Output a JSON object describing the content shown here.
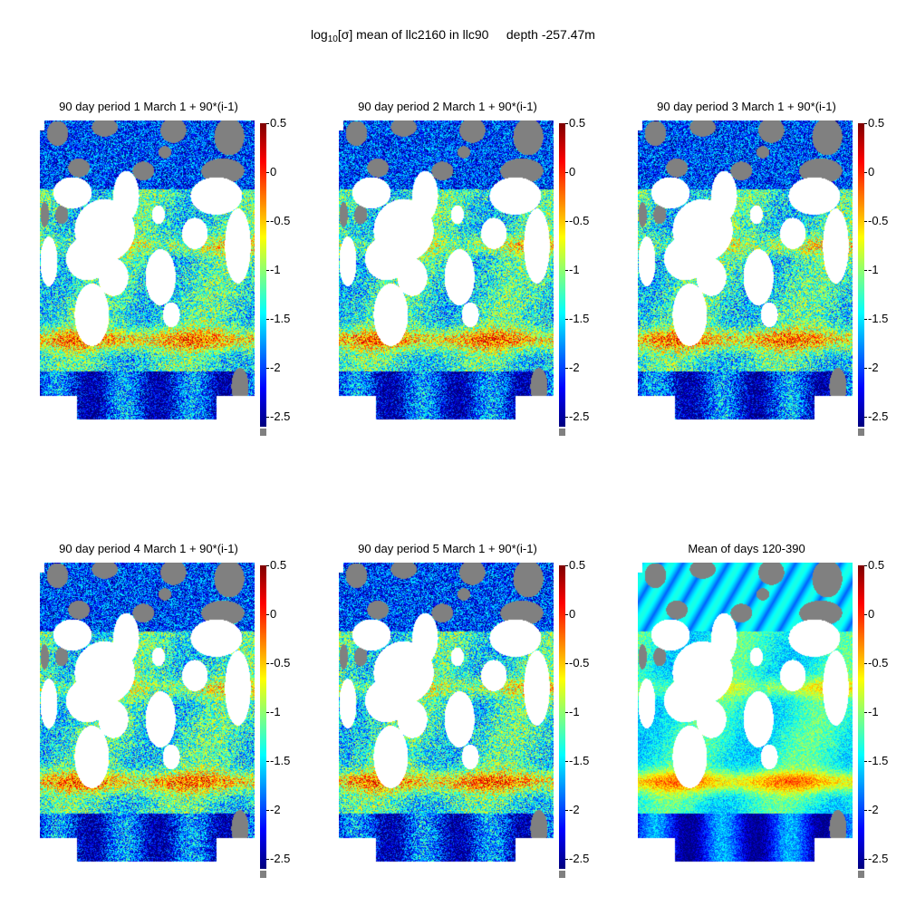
{
  "figure": {
    "title_prefix": "log",
    "title_sub": "10",
    "title_sigma": "[σ]",
    "title_rest": " mean of llc2160 in llc90     depth -257.47m"
  },
  "chart_data": [
    {
      "type": "heatmap",
      "title": "90 day period 1 March 1 + 90*(i-1)",
      "colorbar_ticks": [
        "0.5",
        "0",
        "-0.5",
        "-1",
        "-1.5",
        "-2",
        "-2.5"
      ],
      "clim": [
        -2.6,
        0.5
      ],
      "colormap": "jet",
      "land_color": "#808080"
    },
    {
      "type": "heatmap",
      "title": "90 day period 2 March 1 + 90*(i-1)",
      "colorbar_ticks": [
        "0.5",
        "0",
        "-0.5",
        "-1",
        "-1.5",
        "-2",
        "-2.5"
      ],
      "clim": [
        -2.6,
        0.5
      ],
      "colormap": "jet",
      "land_color": "#808080"
    },
    {
      "type": "heatmap",
      "title": "90 day period 3 March 1 + 90*(i-1)",
      "colorbar_ticks": [
        "0.5",
        "0",
        "-0.5",
        "-1",
        "-1.5",
        "-2",
        "-2.5"
      ],
      "clim": [
        -2.6,
        0.5
      ],
      "colormap": "jet",
      "land_color": "#808080"
    },
    {
      "type": "heatmap",
      "title": "90 day period 4 March 1 + 90*(i-1)",
      "colorbar_ticks": [
        "0.5",
        "0",
        "-0.5",
        "-1",
        "-1.5",
        "-2",
        "-2.5"
      ],
      "clim": [
        -2.6,
        0.5
      ],
      "colormap": "jet",
      "land_color": "#808080"
    },
    {
      "type": "heatmap",
      "title": "90 day period 5 March 1 + 90*(i-1)",
      "colorbar_ticks": [
        "0.5",
        "0",
        "-0.5",
        "-1",
        "-1.5",
        "-2",
        "-2.5"
      ],
      "clim": [
        -2.6,
        0.5
      ],
      "colormap": "jet",
      "land_color": "#808080"
    },
    {
      "type": "heatmap",
      "title": "Mean of days 120-390",
      "colorbar_ticks": [
        "0.5",
        "0",
        "-0.5",
        "-1",
        "-1.5",
        "-2",
        "-2.5"
      ],
      "clim": [
        -2.6,
        0.5
      ],
      "colormap": "jet",
      "land_color": "#808080"
    }
  ]
}
